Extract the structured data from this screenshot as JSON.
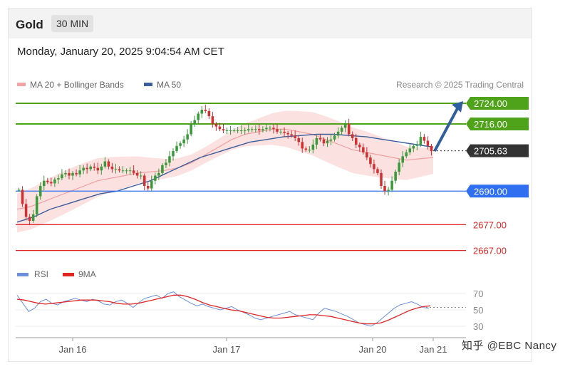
{
  "header": {
    "title": "Gold",
    "timeframe": "30 MIN"
  },
  "datetime": "Monday, January 20, 2025 9:04:54 AM CET",
  "legend": [
    {
      "label": "MA 20 + Bollinger Bands",
      "color": "#f3a3a3"
    },
    {
      "label": "MA 50",
      "color": "#3b5e9c"
    }
  ],
  "credit": "Research © 2025 Trading Central",
  "rsi_legend": [
    {
      "label": "RSI",
      "color": "#6b8fdc"
    },
    {
      "label": "9MA",
      "color": "#e02424"
    }
  ],
  "watermark": "知乎 @EBC  Nancy",
  "chart_data": {
    "type": "candlestick",
    "price_axis": {
      "min": 2667,
      "max": 2728
    },
    "x_labels": [
      "Jan 16",
      "Jan 17",
      "Jan 20",
      "Jan 21"
    ],
    "levels": [
      {
        "value": 2724.0,
        "label": "2724.00",
        "color": "#4fa31a",
        "style": "solid",
        "tag": true
      },
      {
        "value": 2716.0,
        "label": "2716.00",
        "color": "#4fa31a",
        "style": "solid",
        "tag": true
      },
      {
        "value": 2705.63,
        "label": "2705.63",
        "color": "#333333",
        "style": "dotted",
        "tag": true,
        "current": true
      },
      {
        "value": 2690.0,
        "label": "2690.00",
        "color": "#2f6ff0",
        "style": "solid",
        "tag": true
      },
      {
        "value": 2677.0,
        "label": "2677.00",
        "color": "#e02424",
        "style": "solid",
        "tag": false
      },
      {
        "value": 2667.0,
        "label": "2667.00",
        "color": "#e02424",
        "style": "solid",
        "tag": false
      }
    ],
    "closes": [
      2690.5,
      2685.0,
      2680.0,
      2678.5,
      2681.0,
      2688.0,
      2692.0,
      2694.0,
      2693.5,
      2693.0,
      2694.5,
      2695.0,
      2696.5,
      2697.0,
      2696.0,
      2697.0,
      2696.5,
      2698.0,
      2699.0,
      2698.5,
      2699.5,
      2699.0,
      2698.0,
      2699.5,
      2701.5,
      2699.5,
      2698.5,
      2698.5,
      2698.0,
      2698.0,
      2698.0,
      2698.0,
      2697.0,
      2696.0,
      2696.0,
      2692.0,
      2691.0,
      2694.0,
      2696.0,
      2697.0,
      2700.0,
      2701.0,
      2703.5,
      2705.5,
      2707.5,
      2708.5,
      2710.0,
      2712.0,
      2716.0,
      2717.5,
      2720.0,
      2721.5,
      2721.0,
      2719.0,
      2716.0,
      2715.0,
      2714.0,
      2713.5,
      2713.5,
      2713.5,
      2713.5,
      2713.5,
      2713.5,
      2713.5,
      2714.0,
      2714.0,
      2714.0,
      2713.5,
      2714.0,
      2714.5,
      2714.5,
      2714.0,
      2713.0,
      2713.0,
      2712.5,
      2712.0,
      2711.5,
      2710.5,
      2709.0,
      2706.5,
      2706.0,
      2706.0,
      2708.0,
      2710.5,
      2710.0,
      2708.5,
      2709.5,
      2710.0,
      2711.5,
      2713.0,
      2714.5,
      2716.0,
      2712.0,
      2710.5,
      2708.0,
      2707.0,
      2705.0,
      2703.0,
      2700.5,
      2698.5,
      2697.0,
      2692.0,
      2690.0,
      2690.5,
      2694.0,
      2697.5,
      2701.0,
      2703.5,
      2705.0,
      2706.5,
      2707.5,
      2708.0,
      2711.0,
      2709.5,
      2707.5,
      2705.5
    ],
    "candle_range": {
      "start_close": 2690.5,
      "low": 2676.5,
      "high": 2722.5
    },
    "ma20": [
      2683,
      2684,
      2686,
      2688,
      2690,
      2692,
      2694,
      2695,
      2696,
      2697,
      2697.5,
      2698,
      2699,
      2701,
      2704,
      2707,
      2710,
      2712,
      2713,
      2714,
      2714,
      2713,
      2712,
      2710,
      2708,
      2706,
      2705,
      2704,
      2703,
      2702,
      2702.5,
      2703
    ],
    "ma50": [
      2678,
      2680,
      2683,
      2685,
      2687,
      2689,
      2690,
      2692,
      2694,
      2697,
      2700,
      2703,
      2705,
      2707,
      2709,
      2710,
      2711,
      2711.5,
      2712,
      2712,
      2711.5,
      2711,
      2710,
      2709,
      2708,
      2707
    ],
    "rsi_axis": {
      "min": 20,
      "max": 80,
      "ticks": [
        70,
        50,
        30
      ],
      "dotted_level": 53
    },
    "rsi": [
      68,
      58,
      48,
      52,
      60,
      63,
      58,
      56,
      60,
      62,
      64,
      62,
      60,
      63,
      61,
      57,
      56,
      60,
      62,
      58,
      53,
      59,
      64,
      66,
      68,
      64,
      70,
      72,
      66,
      62,
      58,
      55,
      57,
      54,
      52,
      50,
      52,
      54,
      50,
      47,
      44,
      40,
      38,
      40,
      42,
      44,
      46,
      48,
      44,
      42,
      40,
      38,
      46,
      52,
      50,
      48,
      45,
      42,
      38,
      34,
      32,
      30,
      34,
      40,
      46,
      52,
      56,
      58,
      60,
      57,
      53,
      52
    ],
    "rsi_ma": [
      63,
      62,
      60,
      58,
      57,
      58,
      59,
      60,
      61,
      62,
      62,
      62,
      61,
      60,
      58,
      57,
      57,
      58,
      60,
      62,
      64,
      66,
      68,
      68,
      66,
      63,
      59,
      56,
      54,
      52,
      50,
      49,
      47,
      45,
      43,
      41,
      40,
      40,
      41,
      42,
      43,
      44,
      44,
      43,
      42,
      40,
      38,
      36,
      34,
      33,
      33,
      34,
      37,
      41,
      45,
      49,
      52,
      54,
      55
    ]
  }
}
